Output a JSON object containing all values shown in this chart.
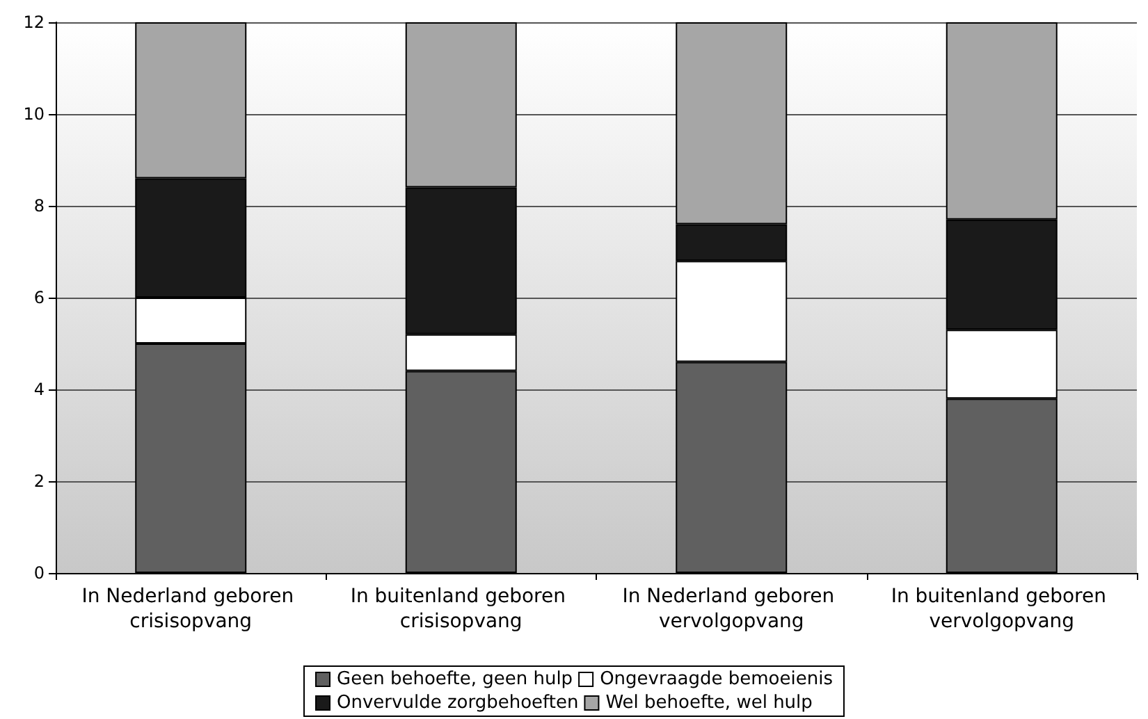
{
  "chart_data": {
    "type": "bar",
    "stacked": true,
    "categories": [
      "In Nederland geboren crisisopvang",
      "In buitenland geboren crisisopvang",
      "In Nederland geboren vervolgopvang",
      "In buitenland geboren vervolgopvang"
    ],
    "series": [
      {
        "name": "Geen behoefte, geen hulp",
        "color": "#606060",
        "values": [
          5.0,
          4.4,
          4.6,
          3.8
        ]
      },
      {
        "name": "Ongevraagde bemoeienis",
        "color": "#ffffff",
        "values": [
          1.0,
          0.8,
          2.2,
          1.5
        ]
      },
      {
        "name": "Onvervulde zorgbehoeften",
        "color": "#1a1a1a",
        "values": [
          2.6,
          3.2,
          0.8,
          2.4
        ]
      },
      {
        "name": "Wel behoefte, wel hulp",
        "color": "#a6a6a6",
        "values": [
          3.4,
          3.6,
          4.4,
          4.3
        ]
      }
    ],
    "ylim": [
      0,
      12
    ],
    "yticks": [
      0,
      2,
      4,
      6,
      8,
      10,
      12
    ],
    "grid": "y",
    "legend": "bottom"
  }
}
